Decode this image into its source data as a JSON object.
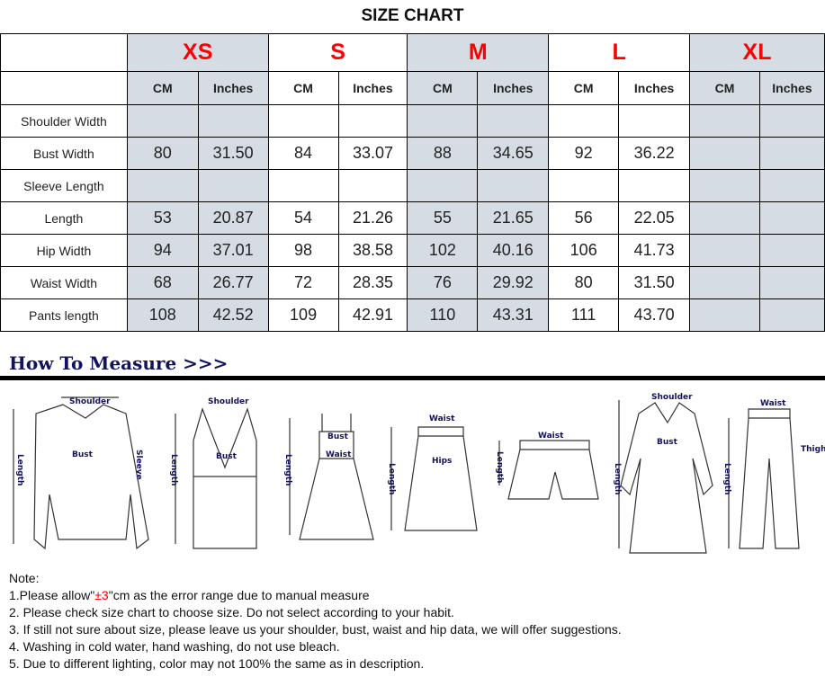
{
  "title": "SIZE CHART",
  "sizes": [
    "XS",
    "S",
    "M",
    "L",
    "XL"
  ],
  "units": {
    "cm": "CM",
    "inches": "Inches"
  },
  "rows": [
    {
      "label": "Shoulder Width",
      "values": [
        "",
        "",
        "",
        "",
        "",
        "",
        "",
        "",
        "",
        ""
      ]
    },
    {
      "label": "Bust Width",
      "values": [
        "80",
        "31.50",
        "84",
        "33.07",
        "88",
        "34.65",
        "92",
        "36.22",
        "",
        ""
      ]
    },
    {
      "label": "Sleeve Length",
      "values": [
        "",
        "",
        "",
        "",
        "",
        "",
        "",
        "",
        "",
        ""
      ]
    },
    {
      "label": "Length",
      "values": [
        "53",
        "20.87",
        "54",
        "21.26",
        "55",
        "21.65",
        "56",
        "22.05",
        "",
        ""
      ]
    },
    {
      "label": "Hip Width",
      "values": [
        "94",
        "37.01",
        "98",
        "38.58",
        "102",
        "40.16",
        "106",
        "41.73",
        "",
        ""
      ]
    },
    {
      "label": "Waist Width",
      "values": [
        "68",
        "26.77",
        "72",
        "28.35",
        "76",
        "29.92",
        "80",
        "31.50",
        "",
        ""
      ]
    },
    {
      "label": "Pants length",
      "values": [
        "108",
        "42.52",
        "109",
        "42.91",
        "110",
        "43.31",
        "111",
        "43.70",
        "",
        ""
      ]
    }
  ],
  "colors": {
    "size_label": "#ff0000",
    "shaded_column": "#d6dce4",
    "heading": "#12125e"
  },
  "how_to_measure": {
    "heading": "How To Measure >>>",
    "labels": {
      "shoulder": "Shoulder",
      "bust": "Bust",
      "sleeve": "Sleeve",
      "length": "Length",
      "waist": "Waist",
      "hips": "Hips",
      "thigh": "Thigh"
    }
  },
  "notes": {
    "heading": "Note:",
    "n1_pre": "1.Please allow\"",
    "n1_red": "±3",
    "n1_post": "\"cm as the error range due to manual measure",
    "n2": "2. Please check size chart to choose size. Do not select according to your habit.",
    "n3": "3. If still not sure about size, please leave us your shoulder, bust, waist and hip data, we will offer suggestions.",
    "n4": "4. Washing in cold water, hand washing, do not use bleach.",
    "n5": "5. Due to different lighting, color may not 100% the same as in description."
  }
}
